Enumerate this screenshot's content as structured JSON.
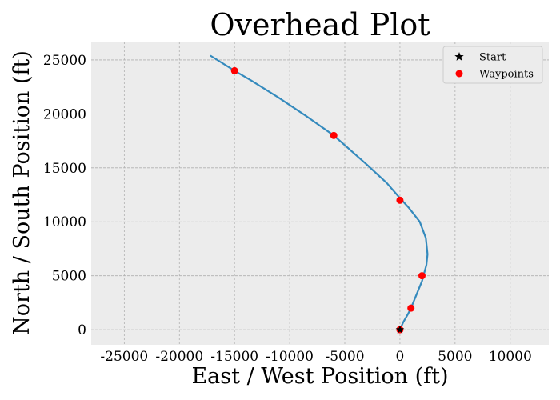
{
  "chart_data": {
    "type": "line",
    "title": "Overhead Plot",
    "xlabel": "East / West Position (ft)",
    "ylabel": "North / South Position (ft)",
    "xlim": [
      -28000,
      13500
    ],
    "ylim": [
      -1400,
      26700
    ],
    "xticks": [
      -25000,
      -20000,
      -15000,
      -10000,
      -5000,
      0,
      5000,
      10000
    ],
    "yticks": [
      0,
      5000,
      10000,
      15000,
      20000,
      25000
    ],
    "grid": true,
    "legend_position": "top-right",
    "legend": [
      {
        "label": "Start",
        "marker": "star",
        "color": "#000000"
      },
      {
        "label": "Waypoints",
        "marker": "circle",
        "color": "#ff0000"
      }
    ],
    "series": [
      {
        "kind": "path",
        "color": "#348abd",
        "x": [
          0,
          300,
          700,
          1000,
          1400,
          2000,
          2400,
          2500,
          2350,
          1800,
          800,
          0,
          -1200,
          -3000,
          -6000,
          -8500,
          -11000,
          -13500,
          -15000,
          -17200
        ],
        "y": [
          0,
          700,
          1400,
          2000,
          3000,
          4500,
          6000,
          7000,
          8500,
          10000,
          11300,
          12200,
          13600,
          15300,
          18000,
          19800,
          21500,
          23100,
          24000,
          25400
        ]
      },
      {
        "kind": "waypoints",
        "color": "#ff0000",
        "x": [
          0,
          1000,
          2000,
          0,
          -6000,
          -15000
        ],
        "y": [
          0,
          2000,
          5000,
          12000,
          18000,
          24000
        ]
      },
      {
        "kind": "start",
        "color": "#000000",
        "x": [
          0
        ],
        "y": [
          0
        ]
      }
    ]
  }
}
